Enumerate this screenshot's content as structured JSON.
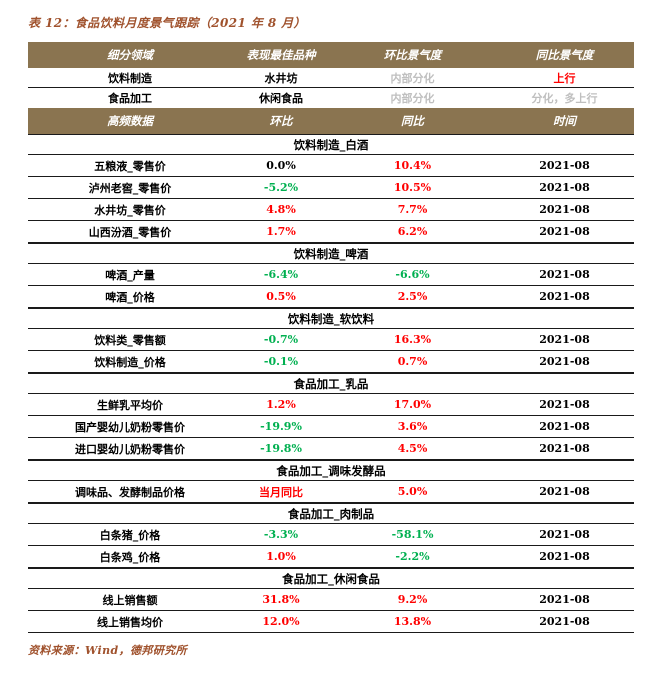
{
  "title": "表 12：食品饮料月度景气跟踪（2021 年 8 月）",
  "source": "资料来源：Wind，德邦研究所",
  "colors": {
    "header_bg": "#8A7450",
    "header_text": "#FFFFFF",
    "accent": "#A0522D",
    "positive": "#FF0000",
    "negative": "#00B050",
    "muted": "#BFBFBF"
  },
  "summary": {
    "headers": [
      "细分领域",
      "表现最佳品种",
      "环比景气度",
      "同比景气度"
    ],
    "rows": [
      {
        "segment": "饮料制造",
        "best": "水井坊",
        "mom": "内部分化",
        "mom_tone": "muted",
        "yoy": "上行",
        "yoy_tone": "pos"
      },
      {
        "segment": "食品加工",
        "best": "休闲食品",
        "mom": "内部分化",
        "mom_tone": "muted",
        "yoy": "分化，多上行",
        "yoy_tone": "muted"
      }
    ]
  },
  "detail": {
    "headers": [
      "高频数据",
      "环比",
      "同比",
      "时间"
    ],
    "sections": [
      {
        "name": "饮料制造_白酒",
        "rows": [
          {
            "label": "五粮液_零售价",
            "mom": "0.0%",
            "mom_tone": "dark",
            "yoy": "10.4%",
            "yoy_tone": "pos",
            "date": "2021-08"
          },
          {
            "label": "泸州老窖_零售价",
            "mom": "-5.2%",
            "mom_tone": "neg",
            "yoy": "10.5%",
            "yoy_tone": "pos",
            "date": "2021-08"
          },
          {
            "label": "水井坊_零售价",
            "mom": "4.8%",
            "mom_tone": "pos",
            "yoy": "7.7%",
            "yoy_tone": "pos",
            "date": "2021-08"
          },
          {
            "label": "山西汾酒_零售价",
            "mom": "1.7%",
            "mom_tone": "pos",
            "yoy": "6.2%",
            "yoy_tone": "pos",
            "date": "2021-08"
          }
        ]
      },
      {
        "name": "饮料制造_啤酒",
        "rows": [
          {
            "label": "啤酒_产量",
            "mom": "-6.4%",
            "mom_tone": "neg",
            "yoy": "-6.6%",
            "yoy_tone": "neg",
            "date": "2021-08"
          },
          {
            "label": "啤酒_价格",
            "mom": "0.5%",
            "mom_tone": "pos",
            "yoy": "2.5%",
            "yoy_tone": "pos",
            "date": "2021-08"
          }
        ]
      },
      {
        "name": "饮料制造_软饮料",
        "rows": [
          {
            "label": "饮料类_零售额",
            "mom": "-0.7%",
            "mom_tone": "neg",
            "yoy": "16.3%",
            "yoy_tone": "pos",
            "date": "2021-08"
          },
          {
            "label": "饮料制造_价格",
            "mom": "-0.1%",
            "mom_tone": "neg",
            "yoy": "0.7%",
            "yoy_tone": "pos",
            "date": "2021-08"
          }
        ]
      },
      {
        "name": "食品加工_乳品",
        "rows": [
          {
            "label": "生鲜乳平均价",
            "mom": "1.2%",
            "mom_tone": "pos",
            "yoy": "17.0%",
            "yoy_tone": "pos",
            "date": "2021-08"
          },
          {
            "label": "国产婴幼儿奶粉零售价",
            "mom": "-19.9%",
            "mom_tone": "neg",
            "yoy": "3.6%",
            "yoy_tone": "pos",
            "date": "2021-08"
          },
          {
            "label": "进口婴幼儿奶粉零售价",
            "mom": "-19.8%",
            "mom_tone": "neg",
            "yoy": "4.5%",
            "yoy_tone": "pos",
            "date": "2021-08"
          }
        ]
      },
      {
        "name": "食品加工_调味发酵品",
        "rows": [
          {
            "label": "调味品、发酵制品价格",
            "mom": "当月同比",
            "mom_tone": "pos",
            "yoy": "5.0%",
            "yoy_tone": "pos",
            "date": "2021-08"
          }
        ]
      },
      {
        "name": "食品加工_肉制品",
        "rows": [
          {
            "label": "白条猪_价格",
            "mom": "-3.3%",
            "mom_tone": "neg",
            "yoy": "-58.1%",
            "yoy_tone": "neg",
            "date": "2021-08"
          },
          {
            "label": "白条鸡_价格",
            "mom": "1.0%",
            "mom_tone": "pos",
            "yoy": "-2.2%",
            "yoy_tone": "neg",
            "date": "2021-08"
          }
        ]
      },
      {
        "name": "食品加工_休闲食品",
        "rows": [
          {
            "label": "线上销售额",
            "mom": "31.8%",
            "mom_tone": "pos",
            "yoy": "9.2%",
            "yoy_tone": "pos",
            "date": "2021-08"
          },
          {
            "label": "线上销售均价",
            "mom": "12.0%",
            "mom_tone": "pos",
            "yoy": "13.8%",
            "yoy_tone": "pos",
            "date": "2021-08"
          }
        ]
      }
    ]
  }
}
